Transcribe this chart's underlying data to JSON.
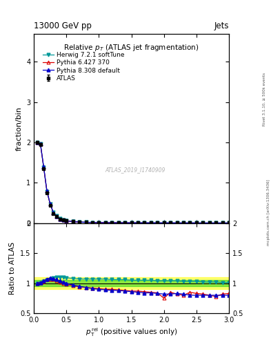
{
  "title_top_left": "13000 GeV pp",
  "title_top_right": "Jets",
  "plot_title": "Relative $p_T$ (ATLAS jet fragmentation)",
  "watermark": "ATLAS_2019_I1740909",
  "ylabel_main": "fraction/bin",
  "ylabel_ratio": "Ratio to ATLAS",
  "right_label1": "Rivet 3.1.10, ≥ 500k events",
  "right_label2": "mcplots.cern.ch [arXiv:1306.3436]",
  "main_xlim": [
    0,
    3.0
  ],
  "main_ylim": [
    0,
    4.7
  ],
  "ratio_ylim": [
    0.5,
    2.0
  ],
  "ratio_yticks": [
    0.5,
    1.0,
    1.5,
    2.0
  ],
  "ratio_yticklabels": [
    "0.5",
    "1",
    "1.5",
    "2"
  ],
  "x_data": [
    0.05,
    0.1,
    0.15,
    0.2,
    0.25,
    0.3,
    0.35,
    0.4,
    0.45,
    0.5,
    0.6,
    0.7,
    0.8,
    0.9,
    1.0,
    1.1,
    1.2,
    1.3,
    1.4,
    1.5,
    1.6,
    1.7,
    1.8,
    1.9,
    2.0,
    2.1,
    2.2,
    2.3,
    2.4,
    2.5,
    2.6,
    2.7,
    2.8,
    2.9,
    3.0
  ],
  "atlas_y": [
    2.0,
    1.95,
    1.35,
    0.75,
    0.44,
    0.24,
    0.16,
    0.1,
    0.075,
    0.055,
    0.038,
    0.027,
    0.02,
    0.016,
    0.013,
    0.011,
    0.01,
    0.009,
    0.008,
    0.007,
    0.007,
    0.006,
    0.006,
    0.005,
    0.005,
    0.005,
    0.004,
    0.004,
    0.004,
    0.004,
    0.003,
    0.003,
    0.003,
    0.003,
    0.003
  ],
  "atlas_yerr": [
    0.04,
    0.03,
    0.02,
    0.015,
    0.01,
    0.008,
    0.006,
    0.004,
    0.003,
    0.002,
    0.0015,
    0.001,
    0.001,
    0.0008,
    0.0007,
    0.0006,
    0.0005,
    0.0005,
    0.0004,
    0.0004,
    0.0003,
    0.0003,
    0.0003,
    0.0003,
    0.0002,
    0.0002,
    0.0002,
    0.0002,
    0.0002,
    0.0002,
    0.0002,
    0.0002,
    0.0002,
    0.0002,
    0.0002
  ],
  "herwig_ratio": [
    1.0,
    1.01,
    1.03,
    1.05,
    1.07,
    1.09,
    1.1,
    1.1,
    1.1,
    1.09,
    1.08,
    1.07,
    1.07,
    1.07,
    1.07,
    1.07,
    1.06,
    1.06,
    1.06,
    1.05,
    1.05,
    1.05,
    1.05,
    1.04,
    1.04,
    1.04,
    1.04,
    1.03,
    1.03,
    1.03,
    1.02,
    1.02,
    1.02,
    1.01,
    1.01
  ],
  "pythia6_ratio": [
    1.0,
    1.01,
    1.03,
    1.06,
    1.07,
    1.06,
    1.04,
    1.02,
    1.0,
    0.98,
    0.96,
    0.94,
    0.93,
    0.92,
    0.91,
    0.9,
    0.9,
    0.89,
    0.88,
    0.87,
    0.87,
    0.86,
    0.85,
    0.84,
    0.75,
    0.85,
    0.82,
    0.8,
    0.85,
    0.83,
    0.82,
    0.8,
    0.78,
    0.82,
    0.83
  ],
  "pythia8_ratio": [
    1.0,
    1.01,
    1.04,
    1.07,
    1.09,
    1.08,
    1.06,
    1.04,
    1.02,
    1.0,
    0.97,
    0.95,
    0.93,
    0.91,
    0.9,
    0.89,
    0.88,
    0.88,
    0.87,
    0.86,
    0.85,
    0.84,
    0.84,
    0.83,
    0.82,
    0.82,
    0.83,
    0.82,
    0.8,
    0.8,
    0.8,
    0.8,
    0.8,
    0.8,
    0.8
  ],
  "atlas_color": "black",
  "herwig_color": "#009999",
  "pythia6_color": "#dd0000",
  "pythia8_color": "#0000cc",
  "band_green": "#00cc00",
  "band_yellow": "#ffff00",
  "band_green_alpha": 0.45,
  "band_yellow_alpha": 0.55,
  "green_band_half": 0.05,
  "yellow_band_half": 0.1
}
